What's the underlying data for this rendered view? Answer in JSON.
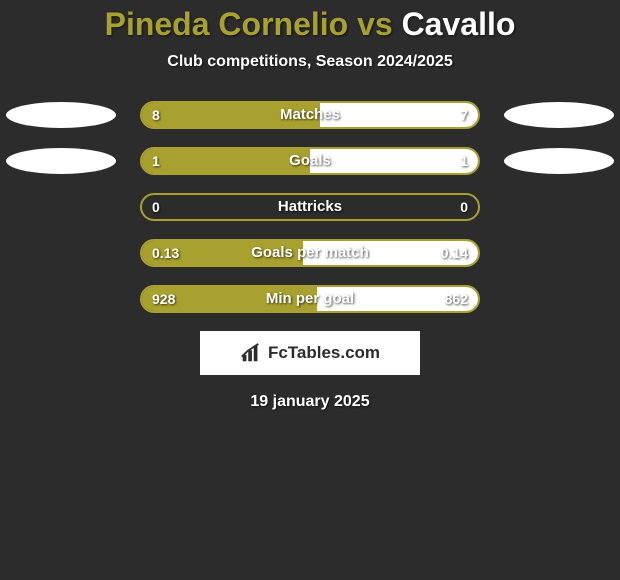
{
  "title": {
    "player1": "Pineda Cornelio",
    "vs": " vs ",
    "player2": "Cavallo",
    "player1_color": "#a9a12f",
    "player2_color": "#ffffff"
  },
  "subtitle": "Club competitions, Season 2024/2025",
  "colors": {
    "background": "#2c2c2c",
    "bar_left": "#a9a12f",
    "bar_right": "#ffffff",
    "ellipse": "#ffffff",
    "text": "#ffffff"
  },
  "rows": [
    {
      "label": "Matches",
      "left_value": "8",
      "right_value": "7",
      "left_pct": 53,
      "right_pct": 47,
      "show_ellipses": true
    },
    {
      "label": "Goals",
      "left_value": "1",
      "right_value": "1",
      "left_pct": 50,
      "right_pct": 50,
      "show_ellipses": true
    },
    {
      "label": "Hattricks",
      "left_value": "0",
      "right_value": "0",
      "left_pct": 0,
      "right_pct": 0,
      "show_ellipses": false
    },
    {
      "label": "Goals per match",
      "left_value": "0.13",
      "right_value": "0.14",
      "left_pct": 48,
      "right_pct": 52,
      "show_ellipses": false
    },
    {
      "label": "Min per goal",
      "left_value": "928",
      "right_value": "862",
      "left_pct": 52,
      "right_pct": 48,
      "show_ellipses": false
    }
  ],
  "bar_track_width": 340,
  "logo_text": "FcTables.com",
  "date": "19 january 2025"
}
